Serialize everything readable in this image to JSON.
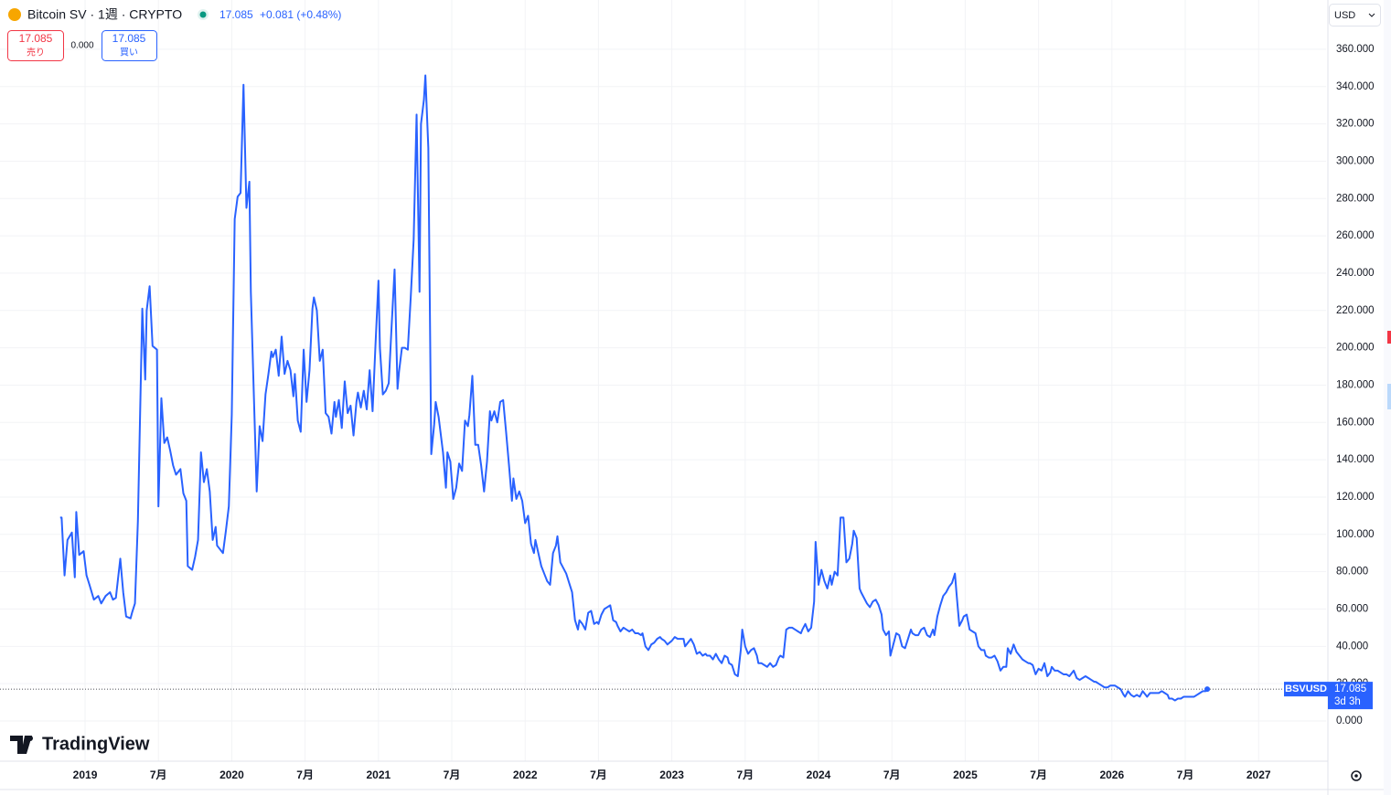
{
  "header": {
    "symbol_title": "Bitcoin SV · 1週 · CRYPTO",
    "last": "17.085",
    "change": "+0.081 (+0.48%)",
    "sell": {
      "price": "17.085",
      "label": "売り"
    },
    "spread": "0.000",
    "buy": {
      "price": "17.085",
      "label": "買い"
    },
    "currency": "USD",
    "logo": "TradingView"
  },
  "price_tag": {
    "price": "17.085",
    "countdown": "3d 3h"
  },
  "chart_data": {
    "type": "line",
    "grid": true,
    "xlim": [
      2018.42,
      2027.46
    ],
    "xticks": [
      2019,
      {
        "value": 2019.5,
        "label": "7月"
      },
      2020,
      {
        "value": 2020.5,
        "label": "7月"
      },
      2021,
      {
        "value": 2021.5,
        "label": "7月"
      },
      2022,
      {
        "value": 2022.5,
        "label": "7月"
      },
      2023,
      {
        "value": 2023.5,
        "label": "7月"
      },
      2024,
      {
        "value": 2024.5,
        "label": "7月"
      },
      2025,
      {
        "value": 2025.5,
        "label": "7月"
      },
      2026,
      {
        "value": 2026.5,
        "label": "7月"
      },
      2027
    ],
    "ylim": [
      -21.55,
      386.4
    ],
    "yticks": [
      {
        "value": 0,
        "label": "0.000"
      },
      {
        "value": 20,
        "label": "20.000"
      },
      {
        "value": 40,
        "label": "40.000"
      },
      {
        "value": 60,
        "label": "60.000"
      },
      {
        "value": 80,
        "label": "80.000"
      },
      {
        "value": 100,
        "label": "100.000"
      },
      {
        "value": 120,
        "label": "120.000"
      },
      {
        "value": 140,
        "label": "140.000"
      },
      {
        "value": 160,
        "label": "160.000"
      },
      {
        "value": 180,
        "label": "180.000"
      },
      {
        "value": 200,
        "label": "200.000"
      },
      {
        "value": 220,
        "label": "220.000"
      },
      {
        "value": 240,
        "label": "240.000"
      },
      {
        "value": 260,
        "label": "260.000"
      },
      {
        "value": 280,
        "label": "280.000"
      },
      {
        "value": 300,
        "label": "300.000"
      },
      {
        "value": 320,
        "label": "320.000"
      },
      {
        "value": 340,
        "label": "340.000"
      },
      {
        "value": 360,
        "label": "360.000"
      }
    ],
    "x": [
      2018.83,
      2018.84,
      2018.86,
      2018.88,
      2018.91,
      2018.93,
      2018.94,
      2018.96,
      2018.99,
      2019.01,
      2019.03,
      2019.06,
      2019.09,
      2019.11,
      2019.14,
      2019.17,
      2019.19,
      2019.21,
      2019.24,
      2019.26,
      2019.28,
      2019.31,
      2019.32,
      2019.34,
      2019.36,
      2019.39,
      2019.41,
      2019.42,
      2019.44,
      2019.46,
      2019.49,
      2019.5,
      2019.52,
      2019.54,
      2019.56,
      2019.58,
      2019.6,
      2019.62,
      2019.65,
      2019.67,
      2019.69,
      2019.7,
      2019.73,
      2019.75,
      2019.77,
      2019.79,
      2019.81,
      2019.83,
      2019.85,
      2019.87,
      2019.89,
      2019.9,
      2019.94,
      2019.96,
      2019.98,
      2020.0,
      2020.02,
      2020.04,
      2020.06,
      2020.08,
      2020.1,
      2020.12,
      2020.13,
      2020.15,
      2020.17,
      2020.19,
      2020.21,
      2020.23,
      2020.25,
      2020.27,
      2020.28,
      2020.3,
      2020.32,
      2020.34,
      2020.36,
      2020.38,
      2020.4,
      2020.42,
      2020.43,
      2020.45,
      2020.47,
      2020.49,
      2020.51,
      2020.53,
      2020.55,
      2020.56,
      2020.58,
      2020.6,
      2020.62,
      2020.64,
      2020.66,
      2020.68,
      2020.7,
      2020.71,
      2020.73,
      2020.75,
      2020.77,
      2020.79,
      2020.81,
      2020.83,
      2020.85,
      2020.86,
      2020.88,
      2020.9,
      2020.92,
      2020.94,
      2020.96,
      2020.98,
      2021.0,
      2021.01,
      2021.03,
      2021.05,
      2021.07,
      2021.09,
      2021.11,
      2021.13,
      2021.14,
      2021.16,
      2021.18,
      2021.2,
      2021.22,
      2021.24,
      2021.26,
      2021.28,
      2021.29,
      2021.31,
      2021.32,
      2021.34,
      2021.36,
      2021.38,
      2021.39,
      2021.41,
      2021.44,
      2021.46,
      2021.47,
      2021.49,
      2021.51,
      2021.53,
      2021.55,
      2021.57,
      2021.59,
      2021.61,
      2021.62,
      2021.64,
      2021.66,
      2021.68,
      2021.7,
      2021.72,
      2021.74,
      2021.76,
      2021.77,
      2021.79,
      2021.81,
      2021.83,
      2021.85,
      2021.87,
      2021.89,
      2021.91,
      2021.92,
      2021.94,
      2021.96,
      2021.98,
      2022.0,
      2022.02,
      2022.04,
      2022.06,
      2022.07,
      2022.09,
      2022.11,
      2022.13,
      2022.15,
      2022.17,
      2022.19,
      2022.21,
      2022.22,
      2022.24,
      2022.26,
      2022.28,
      2022.3,
      2022.32,
      2022.34,
      2022.36,
      2022.37,
      2022.39,
      2022.41,
      2022.43,
      2022.45,
      2022.47,
      2022.49,
      2022.5,
      2022.52,
      2022.54,
      2022.56,
      2022.58,
      2022.6,
      2022.62,
      2022.63,
      2022.65,
      2022.67,
      2022.69,
      2022.71,
      2022.73,
      2022.75,
      2022.77,
      2022.79,
      2022.8,
      2022.82,
      2022.84,
      2022.86,
      2022.88,
      2022.9,
      2022.92,
      2022.93,
      2022.95,
      2022.97,
      2023.0,
      2023.02,
      2023.04,
      2023.06,
      2023.08,
      2023.09,
      2023.11,
      2023.13,
      2023.15,
      2023.17,
      2023.19,
      2023.21,
      2023.23,
      2023.24,
      2023.26,
      2023.28,
      2023.3,
      2023.32,
      2023.34,
      2023.36,
      2023.38,
      2023.39,
      2023.41,
      2023.43,
      2023.45,
      2023.47,
      2023.48,
      2023.5,
      2023.52,
      2023.54,
      2023.56,
      2023.58,
      2023.59,
      2023.61,
      2023.63,
      2023.65,
      2023.67,
      2023.69,
      2023.71,
      2023.73,
      2023.74,
      2023.76,
      2023.78,
      2023.8,
      2023.82,
      2023.84,
      2023.86,
      2023.88,
      2023.89,
      2023.91,
      2023.93,
      2023.95,
      2023.97,
      2023.98,
      2024.0,
      2024.02,
      2024.04,
      2024.06,
      2024.08,
      2024.09,
      2024.11,
      2024.13,
      2024.15,
      2024.17,
      2024.19,
      2024.21,
      2024.23,
      2024.24,
      2024.26,
      2024.28,
      2024.29,
      2024.31,
      2024.33,
      2024.35,
      2024.37,
      2024.39,
      2024.41,
      2024.43,
      2024.44,
      2024.46,
      2024.48,
      2024.49,
      2024.51,
      2024.53,
      2024.55,
      2024.57,
      2024.59,
      2024.61,
      2024.63,
      2024.64,
      2024.66,
      2024.68,
      2024.7,
      2024.72,
      2024.74,
      2024.76,
      2024.78,
      2024.79,
      2024.81,
      2024.83,
      2024.85,
      2024.87,
      2024.89,
      2024.91,
      2024.93,
      2024.94,
      2024.96,
      2024.98,
      2024.99,
      2025.01,
      2025.03,
      2025.05,
      2025.07,
      2025.09,
      2025.11,
      2025.13,
      2025.14,
      2025.16,
      2025.18,
      2025.2,
      2025.22,
      2025.24,
      2025.26,
      2025.28,
      2025.29,
      2025.31,
      2025.33,
      2025.35,
      2025.37,
      2025.39,
      2025.41,
      2025.43,
      2025.44,
      2025.46,
      2025.48,
      2025.5,
      2025.52,
      2025.54,
      2025.56,
      2025.58,
      2025.59,
      2025.61,
      2025.63,
      2025.65,
      2025.67,
      2025.69,
      2025.71,
      2025.73,
      2025.74,
      2025.76,
      2025.78,
      2025.8,
      2025.82,
      2025.84,
      2025.86,
      2025.88,
      2025.89,
      2025.91,
      2025.93,
      2025.95,
      2025.97,
      2025.99,
      2026.0,
      2026.02,
      2026.04,
      2026.06,
      2026.08,
      2026.09,
      2026.11,
      2026.13,
      2026.15,
      2026.17,
      2026.19,
      2026.21,
      2026.23,
      2026.24,
      2026.26,
      2026.28,
      2026.3,
      2026.32,
      2026.34,
      2026.36,
      2026.38,
      2026.39,
      2026.41,
      2026.43,
      2026.45,
      2026.47,
      2026.49,
      2026.51,
      2026.53,
      2026.54,
      2026.56,
      2026.58,
      2026.6,
      2026.62,
      2026.64,
      2026.65
    ],
    "series": [
      {
        "name": "BSVUSD",
        "color": "#2962ff",
        "values": [
          109,
          109,
          78,
          97,
          101,
          77,
          112,
          89,
          91,
          78,
          73,
          65,
          67,
          63,
          67,
          69,
          65,
          66,
          87,
          69,
          56,
          55,
          58,
          63,
          107,
          221,
          183,
          220,
          233,
          201,
          199,
          115,
          173,
          149,
          152,
          145,
          137,
          132,
          135,
          122,
          118,
          83,
          81,
          88,
          97,
          144,
          128,
          135,
          123,
          97,
          104,
          94,
          90,
          102,
          115,
          164,
          269,
          281,
          283,
          341,
          275,
          289,
          230,
          176,
          123,
          158,
          150,
          175,
          186,
          198,
          195,
          199,
          185,
          206,
          186,
          193,
          188,
          174,
          186,
          161,
          155,
          199,
          171,
          188,
          221,
          227,
          220,
          193,
          199,
          165,
          163,
          154,
          171,
          163,
          172,
          157,
          182,
          165,
          169,
          153,
          171,
          176,
          168,
          177,
          167,
          188,
          166,
          202,
          236,
          200,
          175,
          177,
          181,
          212,
          242,
          178,
          187,
          200,
          200,
          199,
          227,
          258,
          325,
          230,
          320,
          333,
          346,
          307,
          143,
          159,
          171,
          163,
          144,
          125,
          144,
          139,
          119,
          125,
          138,
          134,
          161,
          158,
          164,
          185,
          148,
          148,
          137,
          123,
          139,
          166,
          161,
          166,
          160,
          171,
          172,
          155,
          137,
          118,
          130,
          119,
          123,
          118,
          106,
          110,
          95,
          90,
          97,
          90,
          83,
          79,
          75,
          73,
          90,
          94,
          99,
          85,
          82,
          79,
          74,
          69,
          54,
          49,
          54,
          52,
          49,
          58,
          59,
          52,
          53,
          52,
          57,
          60,
          61,
          62,
          54,
          53,
          51,
          48,
          50,
          49,
          48,
          49,
          47,
          47,
          46,
          47,
          40,
          38,
          41,
          42,
          44,
          45,
          44,
          43,
          41,
          43,
          45,
          44,
          44,
          44,
          40,
          42,
          44,
          41,
          36,
          37,
          35,
          36,
          35,
          35,
          33,
          36,
          33,
          31,
          35,
          34,
          31,
          30,
          25,
          24,
          38,
          49,
          40,
          36,
          38,
          39,
          35,
          31,
          31,
          30,
          29,
          31,
          29,
          30,
          34,
          35,
          34,
          49,
          50,
          50,
          49,
          48,
          47,
          49,
          52,
          48,
          50,
          64,
          96,
          73,
          81,
          75,
          71,
          78,
          73,
          80,
          78,
          109,
          109,
          85,
          87,
          95,
          102,
          98,
          71,
          69,
          66,
          63,
          61,
          64,
          65,
          62,
          57,
          49,
          46,
          48,
          35,
          41,
          47,
          46,
          40,
          39,
          44,
          49,
          47,
          46,
          46,
          49,
          50,
          46,
          45,
          49,
          46,
          56,
          62,
          67,
          69,
          72,
          74,
          79,
          69,
          51,
          54,
          56,
          57,
          49,
          48,
          47,
          40,
          38,
          38,
          35,
          34,
          34,
          35,
          32,
          27,
          29,
          29,
          39,
          36,
          41,
          37,
          35,
          33,
          32,
          31,
          31,
          30,
          25,
          28,
          27,
          31,
          24,
          26,
          29,
          27,
          27,
          26,
          25,
          25,
          24,
          26,
          27,
          23,
          22,
          23,
          24,
          23,
          22,
          21,
          21,
          20,
          19,
          18,
          18,
          19,
          19,
          19,
          18,
          17,
          14,
          13,
          16,
          14,
          13,
          14,
          13,
          16,
          14,
          13,
          15,
          15,
          15,
          15,
          16,
          15,
          14,
          12,
          12,
          11,
          12,
          12,
          13,
          13,
          13,
          13,
          13,
          14,
          15,
          16,
          16,
          17.085
        ]
      }
    ]
  }
}
